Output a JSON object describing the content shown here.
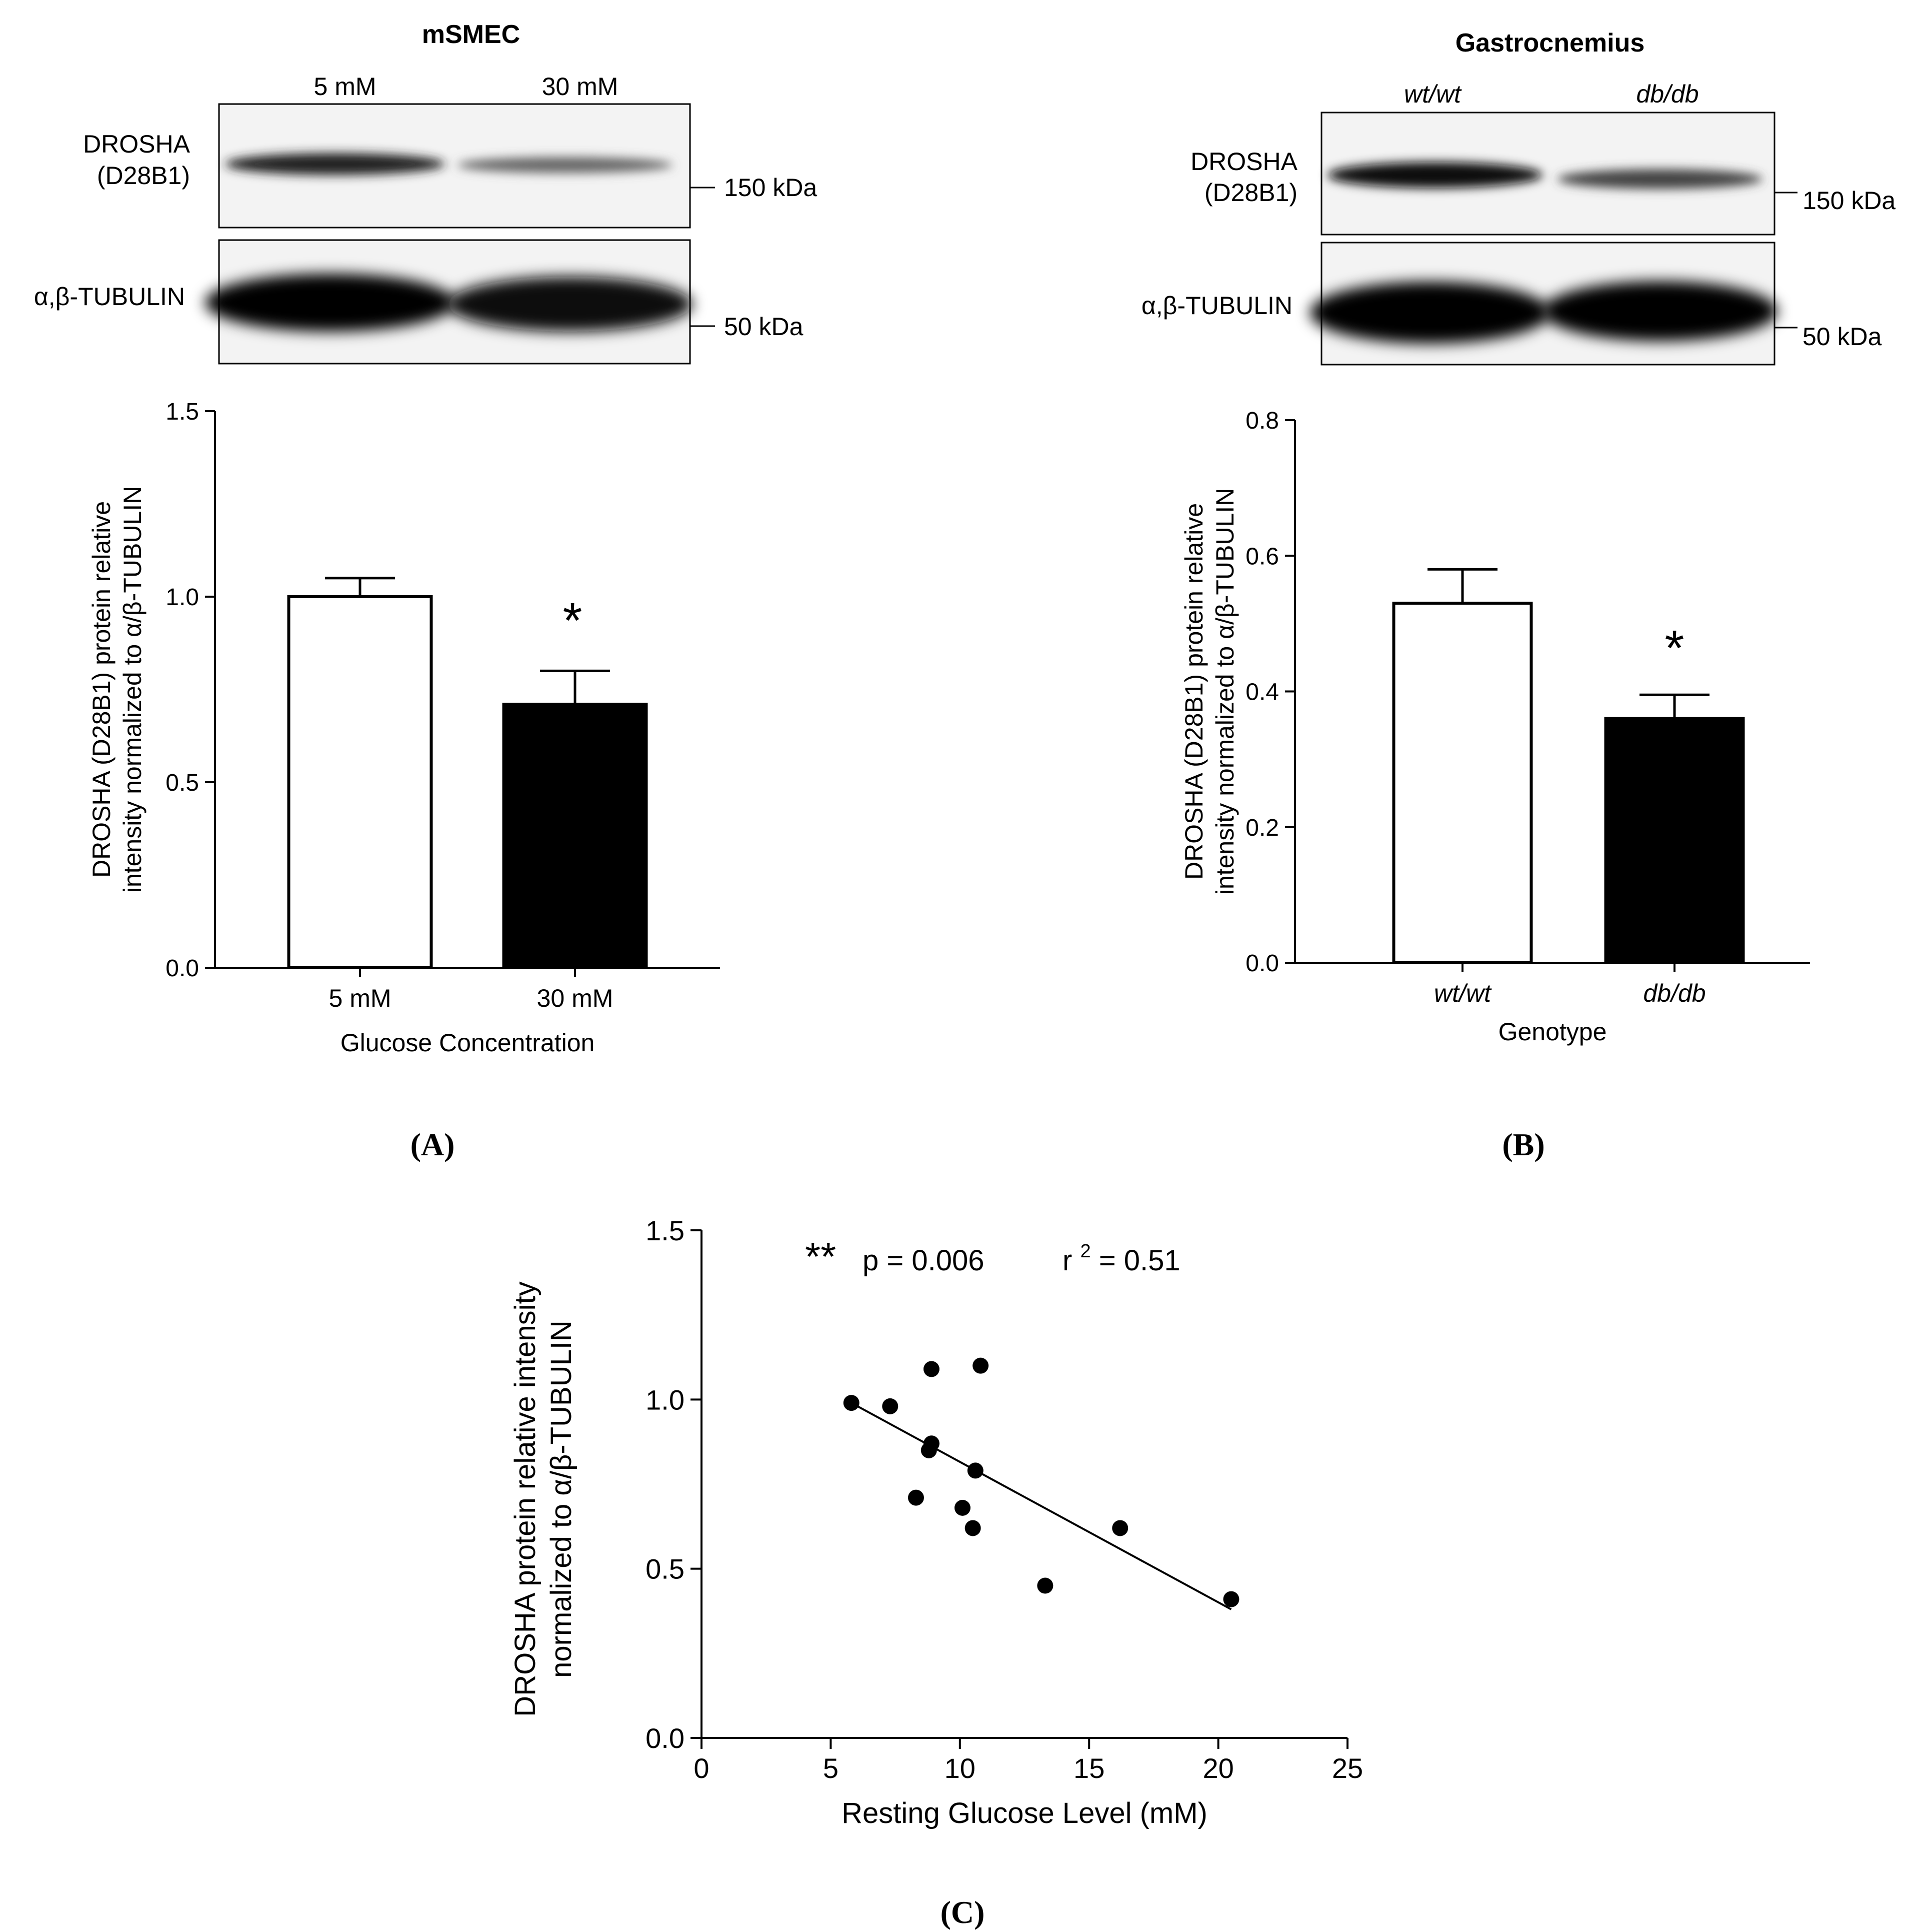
{
  "panelA": {
    "blot": {
      "title": "mSMEC",
      "lanes": [
        "5 mM",
        "30 mM"
      ],
      "row1_label": [
        "DROSHA",
        "(D28B1)"
      ],
      "row2_label": "α,β-TUBULIN",
      "marker1": "150 kDa",
      "marker2": "50 kDa"
    },
    "panel_label": "(A)",
    "significance": "*"
  },
  "panelB": {
    "blot": {
      "title": "Gastrocnemius",
      "lanes": [
        "wt/wt",
        "db/db"
      ],
      "row1_label": [
        "DROSHA",
        "(D28B1)"
      ],
      "row2_label": "α,β-TUBULIN",
      "marker1": "150 kDa",
      "marker2": "50 kDa"
    },
    "panel_label": "(B)",
    "significance": "*"
  },
  "panelC": {
    "panel_label": "(C)",
    "annotation_stars": "**",
    "annotation_p": "p = 0.006",
    "annotation_r": "r",
    "annotation_r_sup": "2",
    "annotation_r_value": " = 0.51"
  },
  "chart_data": [
    {
      "type": "bar",
      "categories": [
        "5 mM",
        "30 mM"
      ],
      "series": [
        {
          "values": [
            1.0,
            0.71
          ],
          "errors": [
            0.05,
            0.09
          ],
          "fills": [
            "#ffffff",
            "#000000"
          ]
        }
      ],
      "xlabel": "Glucose Concentration",
      "ylabel": [
        "DROSHA (D28B1) protein relative",
        "intensity normalized to α/β-TUBULIN"
      ],
      "ylim": [
        0,
        1.5
      ],
      "yticks": [
        0.0,
        0.5,
        1.0,
        1.5
      ],
      "ytick_labels": [
        "0.0",
        "0.5",
        "1.0",
        "1.5"
      ]
    },
    {
      "type": "bar",
      "categories": [
        "wt/wt",
        "db/db"
      ],
      "series": [
        {
          "values": [
            0.53,
            0.36
          ],
          "errors": [
            0.05,
            0.035
          ],
          "fills": [
            "#ffffff",
            "#000000"
          ]
        }
      ],
      "xlabel": "Genotype",
      "ylabel": [
        "DROSHA (D28B1) protein relative",
        "intensity normalized to α/β-TUBULIN"
      ],
      "ylim": [
        0,
        0.8
      ],
      "yticks": [
        0.0,
        0.2,
        0.4,
        0.6,
        0.8
      ],
      "ytick_labels": [
        "0.0",
        "0.2",
        "0.4",
        "0.6",
        "0.8"
      ]
    },
    {
      "type": "scatter",
      "x": [
        5.8,
        7.3,
        8.3,
        8.8,
        8.9,
        8.9,
        10.1,
        10.5,
        10.6,
        10.8,
        13.3,
        16.2,
        20.5
      ],
      "y": [
        0.99,
        0.98,
        0.71,
        0.85,
        0.87,
        1.09,
        0.68,
        0.62,
        0.79,
        1.1,
        0.45,
        0.62,
        0.41
      ],
      "fit_line": {
        "x": [
          5.8,
          20.5
        ],
        "y": [
          0.99,
          0.38
        ]
      },
      "xlabel": "Resting Glucose Level (mM)",
      "ylabel": [
        "DROSHA protein relative intensity",
        "normalized to α/β-TUBULIN"
      ],
      "xlim": [
        0,
        25
      ],
      "ylim": [
        0,
        1.5
      ],
      "xticks": [
        0,
        5,
        10,
        15,
        20,
        25
      ],
      "xtick_labels": [
        "0",
        "5",
        "10",
        "15",
        "20",
        "25"
      ],
      "yticks": [
        0.0,
        0.5,
        1.0,
        1.5
      ],
      "ytick_labels": [
        "0.0",
        "0.5",
        "1.0",
        "1.5"
      ]
    }
  ]
}
